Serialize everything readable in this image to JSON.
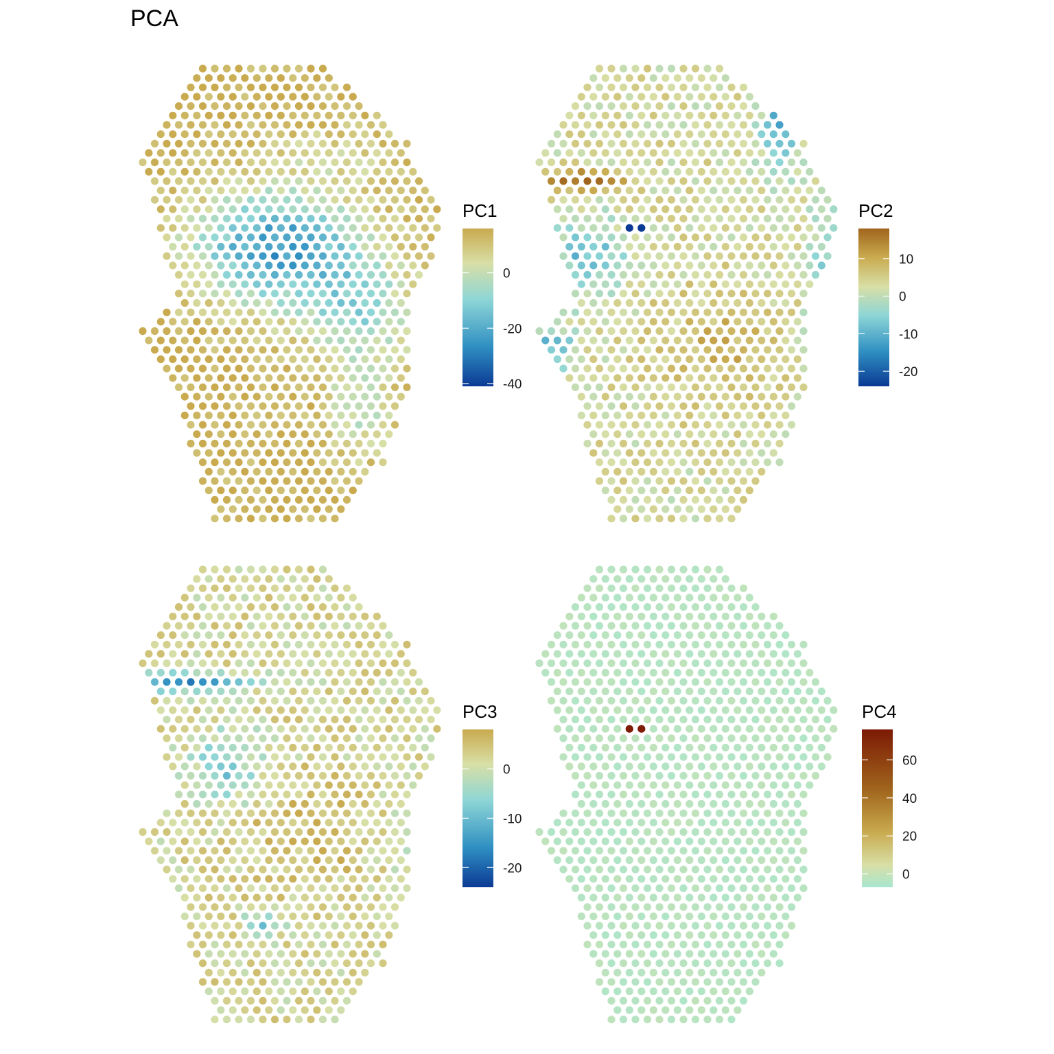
{
  "title": "PCA",
  "colors": {
    "scale_low": "#0b3a94",
    "scale_mid_low": "#2f8fc2",
    "scale_mid": "#8ed6d6",
    "scale_mid_high": "#d8dfa6",
    "scale_high": "#c9aa4f",
    "pc2_high": "#a0651c",
    "pc4_high": "#7d1a05",
    "pc4_low": "#a8e6cf"
  },
  "chart_data": [
    {
      "type": "scatter",
      "title": "",
      "legend_title": "PC1",
      "color_range": [
        -41,
        16
      ],
      "ticks": [
        0,
        -20,
        -40
      ],
      "tick_labels": [
        "0",
        "-20",
        "-40"
      ],
      "palette": "blue-teal-gold",
      "pattern": "pc1"
    },
    {
      "type": "scatter",
      "title": "",
      "legend_title": "PC2",
      "color_range": [
        -24,
        18
      ],
      "ticks": [
        10,
        0,
        -10,
        -20
      ],
      "tick_labels": [
        "10",
        "0",
        "-10",
        "-20"
      ],
      "palette": "blue-teal-brown",
      "pattern": "pc2"
    },
    {
      "type": "scatter",
      "title": "",
      "legend_title": "PC3",
      "color_range": [
        -24,
        8
      ],
      "ticks": [
        0,
        -10,
        -20
      ],
      "tick_labels": [
        "0",
        "-10",
        "-20"
      ],
      "palette": "blue-teal-gold",
      "pattern": "pc3"
    },
    {
      "type": "scatter",
      "title": "",
      "legend_title": "PC4",
      "color_range": [
        -7,
        76
      ],
      "ticks": [
        60,
        40,
        20,
        0
      ],
      "tick_labels": [
        "60",
        "40",
        "20",
        "0"
      ],
      "palette": "mint-gold-rust",
      "pattern": "pc4"
    }
  ]
}
